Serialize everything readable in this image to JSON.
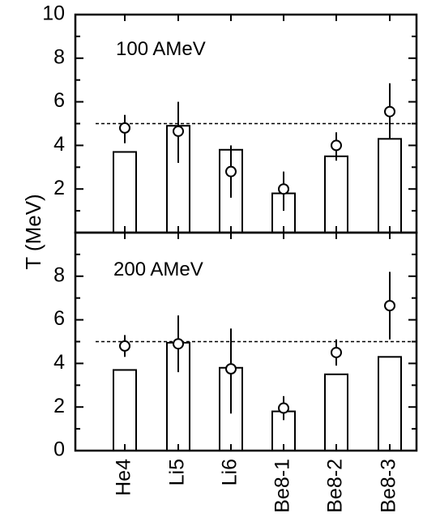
{
  "chart_data": {
    "type": "bar",
    "ylabel": "T (MeV)",
    "categories": [
      "He4",
      "Li5",
      "Li6",
      "Be8-1",
      "Be8-2",
      "Be8-3"
    ],
    "reference_line": 5,
    "panels": [
      {
        "label": "100 AMeV",
        "ylim": [
          0,
          10
        ],
        "yticks": [
          2,
          4,
          6,
          8,
          10
        ],
        "bars": [
          3.7,
          4.9,
          3.8,
          1.8,
          3.5,
          4.3
        ],
        "points": [
          4.8,
          4.65,
          2.8,
          2.0,
          4.0,
          5.55
        ],
        "errors": [
          [
            4.1,
            5.4
          ],
          [
            3.2,
            6.0
          ],
          [
            1.6,
            4.0
          ],
          [
            1.0,
            2.8
          ],
          [
            3.3,
            4.6
          ],
          [
            4.3,
            6.85
          ]
        ]
      },
      {
        "label": "200 AMeV",
        "ylim": [
          0,
          10
        ],
        "yticks": [
          0,
          2,
          4,
          6,
          8
        ],
        "bars": [
          3.7,
          4.95,
          3.8,
          1.8,
          3.5,
          4.3
        ],
        "points": [
          4.8,
          4.9,
          3.75,
          1.95,
          4.5,
          6.65
        ],
        "errors": [
          [
            4.3,
            5.3
          ],
          [
            3.6,
            6.2
          ],
          [
            1.7,
            5.6
          ],
          [
            1.4,
            2.5
          ],
          [
            3.9,
            5.1
          ],
          [
            5.1,
            8.2
          ]
        ]
      }
    ]
  }
}
